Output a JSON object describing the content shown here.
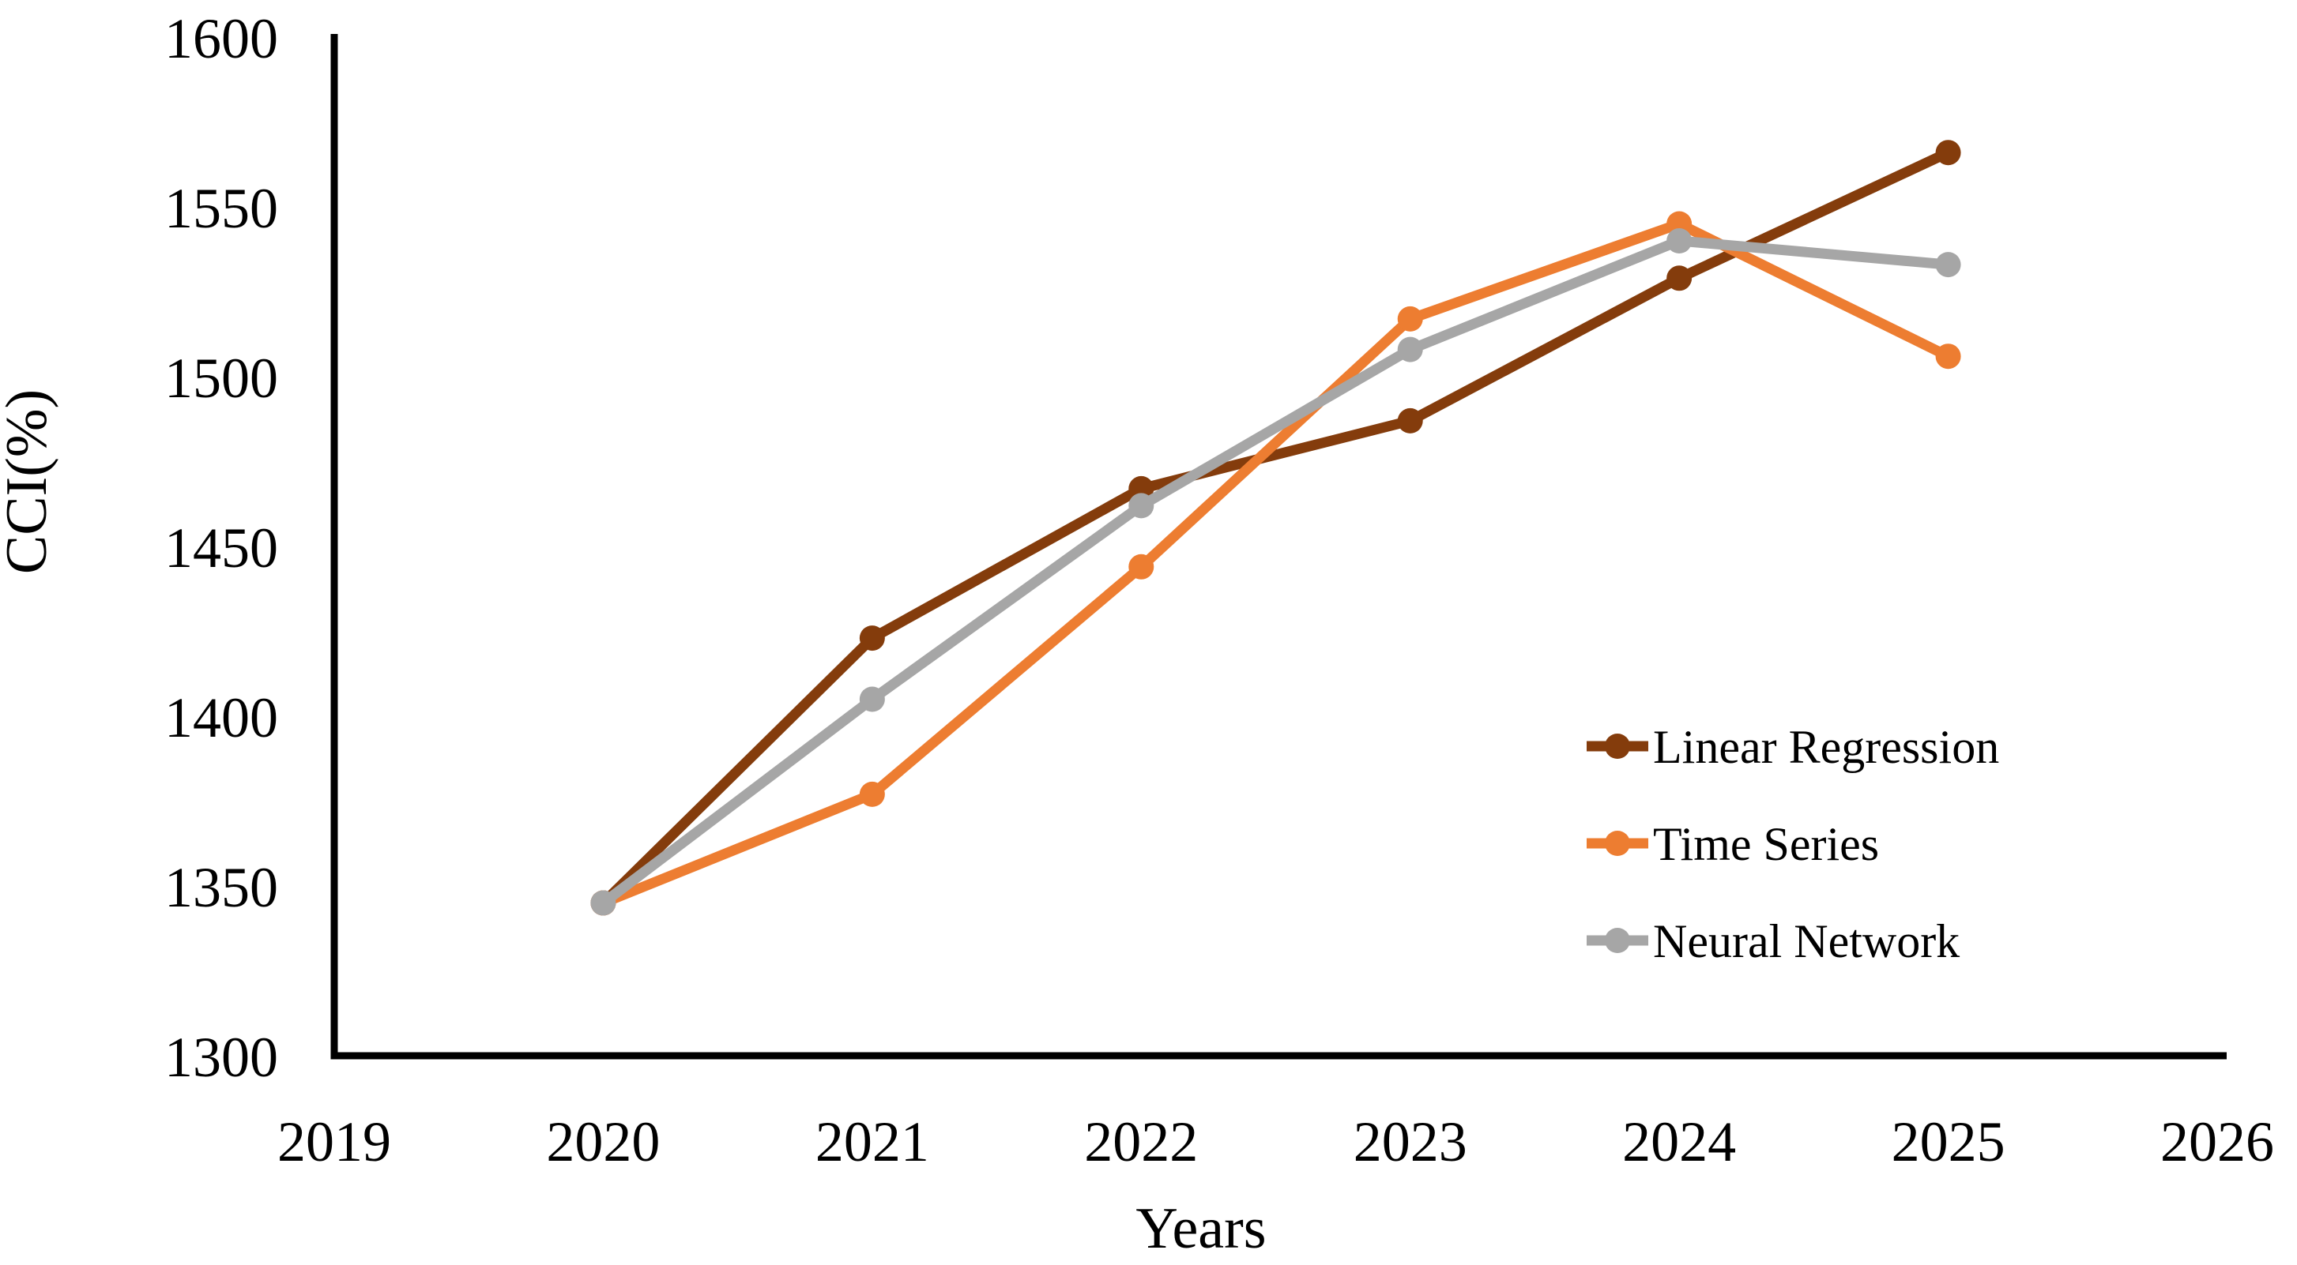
{
  "chart_data": {
    "type": "line",
    "title": "",
    "xlabel": "Years",
    "ylabel": "CCI(%)",
    "x": [
      2020,
      2021,
      2022,
      2023,
      2024,
      2025
    ],
    "x_axis": {
      "min": 2019,
      "max": 2026,
      "tick_step": 1,
      "tick_labels": [
        "2019",
        "2020",
        "2021",
        "2022",
        "2023",
        "2024",
        "2025",
        "2026"
      ]
    },
    "y_axis": {
      "min": 1300,
      "max": 1600,
      "tick_step": 50,
      "tick_labels": [
        "1300",
        "1350",
        "1400",
        "1450",
        "1500",
        "1550",
        "1600"
      ]
    },
    "grid": false,
    "marker": "circle",
    "legend_position": "right-middle",
    "series": [
      {
        "name": "Linear Regression",
        "color": "#843C0C",
        "values": [
          1345,
          1423,
          1467,
          1487,
          1529,
          1566
        ]
      },
      {
        "name": "Time Series",
        "color": "#ED7D31",
        "values": [
          1345,
          1377,
          1444,
          1517,
          1545,
          1506
        ]
      },
      {
        "name": "Neural Network",
        "color": "#A6A6A6",
        "values": [
          1345,
          1405,
          1462,
          1508,
          1540,
          1533
        ]
      }
    ],
    "axis_color": "#000000"
  }
}
